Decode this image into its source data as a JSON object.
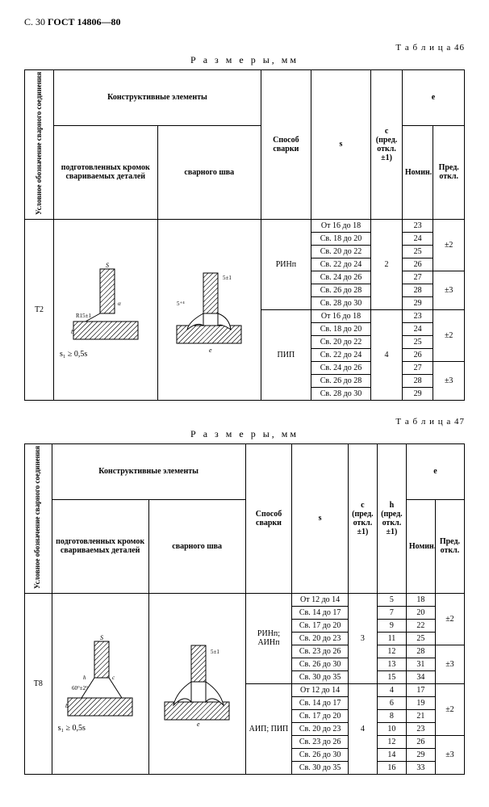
{
  "page_header": {
    "prefix": "С. 30",
    "gost": "ГОСТ 14806—80"
  },
  "caption": "Р а з м е р ы,  мм",
  "table46": {
    "label": "Т а б л и ц а  46",
    "headers": {
      "group": "Конструктивные элементы",
      "symbol": "Условное обозначение сварного соединения",
      "prepared": "подготовленных кромок свариваемых деталей",
      "weld": "сварного шва",
      "method": "Способ сварки",
      "s": "s",
      "c": "c (пред. откл. ±1)",
      "e": "e",
      "nom": "Номин.",
      "dev": "Пред. откл."
    },
    "symbol": "Т2",
    "note": "s₁ ≥ 0,5s",
    "blocks": [
      {
        "method": "РИНп",
        "c": "2",
        "rows": [
          {
            "s": "От 16 до 18",
            "nom": "23",
            "dev": "±2",
            "dev_span": 4
          },
          {
            "s": "Св. 18 до 20",
            "nom": "24"
          },
          {
            "s": "Св. 20 до 22",
            "nom": "25"
          },
          {
            "s": "Св. 22 до 24",
            "nom": "26"
          },
          {
            "s": "Св. 24 до 26",
            "nom": "27",
            "dev": "±3",
            "dev_span": 3
          },
          {
            "s": "Св. 26 до 28",
            "nom": "28"
          },
          {
            "s": "Св. 28 до 30",
            "nom": "29"
          }
        ]
      },
      {
        "method": "ПИП",
        "c": "4",
        "rows": [
          {
            "s": "От 16 до 18",
            "nom": "23",
            "dev": "±2",
            "dev_span": 4
          },
          {
            "s": "Св. 18 до 20",
            "nom": "24"
          },
          {
            "s": "Св. 20 до 22",
            "nom": "25"
          },
          {
            "s": "Св. 22 до 24",
            "nom": "26"
          },
          {
            "s": "Св. 24 до 26",
            "nom": "27",
            "dev": "±3",
            "dev_span": 3
          },
          {
            "s": "Св. 26 до 28",
            "nom": "28"
          },
          {
            "s": "Св. 28 до 30",
            "nom": "29"
          }
        ]
      }
    ]
  },
  "table47": {
    "label": "Т а б л и ц а  47",
    "headers": {
      "group": "Конструктивные элементы",
      "symbol": "Условное обозначение сварного соединения",
      "prepared": "подготовленных кромок свариваемых деталей",
      "weld": "сварного шва",
      "method": "Способ сварки",
      "s": "s",
      "c": "c (пред. откл. ±1)",
      "h": "h (пред. откл. ±1)",
      "e": "e",
      "nom": "Номин.",
      "dev": "Пред. откл."
    },
    "symbol": "Т8",
    "note": "s₁ ≥ 0,5s",
    "blocks": [
      {
        "method": "РИНп; АИНп",
        "c": "3",
        "rows": [
          {
            "s": "От 12 до 14",
            "h": "5",
            "nom": "18",
            "dev": "±2",
            "dev_span": 4
          },
          {
            "s": "Св. 14 до 17",
            "h": "7",
            "nom": "20"
          },
          {
            "s": "Св. 17 до 20",
            "h": "9",
            "nom": "22"
          },
          {
            "s": "Св. 20 до 23",
            "h": "11",
            "nom": "25"
          },
          {
            "s": "Св. 23 до 26",
            "h": "12",
            "nom": "28",
            "dev": "±3",
            "dev_span": 3
          },
          {
            "s": "Св. 26 до 30",
            "h": "13",
            "nom": "31"
          },
          {
            "s": "Св. 30 до 35",
            "h": "15",
            "nom": "34"
          }
        ]
      },
      {
        "method": "АИП; ПИП",
        "c": "4",
        "rows": [
          {
            "s": "От 12 до 14",
            "h": "4",
            "nom": "17",
            "dev": "±2",
            "dev_span": 4
          },
          {
            "s": "Св. 14 до 17",
            "h": "6",
            "nom": "19"
          },
          {
            "s": "Св. 17 до 20",
            "h": "8",
            "nom": "21"
          },
          {
            "s": "Св. 20 до 23",
            "h": "10",
            "nom": "23"
          },
          {
            "s": "Св. 23 до 26",
            "h": "12",
            "nom": "26",
            "dev": "±3",
            "dev_span": 3
          },
          {
            "s": "Св. 26 до 30",
            "h": "14",
            "nom": "29"
          },
          {
            "s": "Св. 30 до 35",
            "h": "16",
            "nom": "33"
          }
        ]
      }
    ]
  }
}
